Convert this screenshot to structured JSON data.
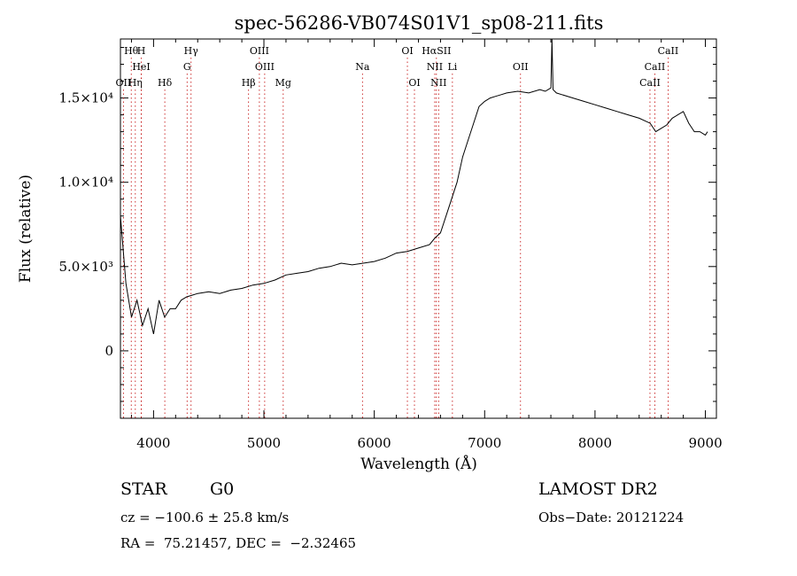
{
  "chart_data": {
    "type": "line",
    "title": "spec-56286-VB074S01V1_sp08-211.fits",
    "xlabel": "Wavelength (Å)",
    "ylabel": "Flux (relative)",
    "xlim": [
      3700,
      9100
    ],
    "ylim": [
      -4000,
      18500
    ],
    "xticks": [
      4000,
      5000,
      6000,
      7000,
      8000,
      9000
    ],
    "yticks": [
      {
        "value": 0,
        "label": "0"
      },
      {
        "value": 5000,
        "label": "5.0×10³"
      },
      {
        "value": 10000,
        "label": "1.0×10⁴"
      },
      {
        "value": 15000,
        "label": "1.5×10⁴"
      }
    ],
    "series": [
      {
        "x": [
          3700,
          3750,
          3800,
          3850,
          3900,
          3950,
          4000,
          4050,
          4100,
          4150,
          4200,
          4250,
          4300,
          4350,
          4400,
          4500,
          4600,
          4700,
          4800,
          4900,
          5000,
          5100,
          5200,
          5300,
          5400,
          5500,
          5600,
          5700,
          5800,
          5900,
          6000,
          6100,
          6200,
          6300,
          6400,
          6500,
          6550,
          6600,
          6650,
          6700,
          6750,
          6800,
          6850,
          6900,
          6950,
          7000,
          7050,
          7100,
          7150,
          7200,
          7300,
          7400,
          7500,
          7550,
          7600,
          7610,
          7620,
          7650,
          7700,
          7800,
          7900,
          8000,
          8100,
          8200,
          8300,
          8400,
          8500,
          8550,
          8600,
          8650,
          8700,
          8750,
          8800,
          8850,
          8900,
          8950,
          9000,
          9020
        ],
        "y": [
          8000,
          4000,
          2000,
          3000,
          1500,
          2500,
          1000,
          3000,
          2000,
          2500,
          2500,
          3000,
          3200,
          3300,
          3400,
          3500,
          3400,
          3600,
          3700,
          3900,
          4000,
          4200,
          4500,
          4600,
          4700,
          4900,
          5000,
          5200,
          5100,
          5200,
          5300,
          5500,
          5800,
          5900,
          6100,
          6300,
          6700,
          7000,
          8000,
          9000,
          10000,
          11500,
          12500,
          13500,
          14500,
          14800,
          15000,
          15100,
          15200,
          15300,
          15400,
          15300,
          15500,
          15400,
          15600,
          18500,
          15500,
          15300,
          15200,
          15000,
          14800,
          14600,
          14400,
          14200,
          14000,
          13800,
          13500,
          13000,
          13200,
          13400,
          13800,
          14000,
          14200,
          13500,
          13000,
          13000,
          12800,
          13000
        ]
      }
    ],
    "lines": [
      {
        "label": "Hθ",
        "x": 3798,
        "row": 1
      },
      {
        "label": "H",
        "x": 3889,
        "row": 1
      },
      {
        "label": "Hγ",
        "x": 4340,
        "row": 1
      },
      {
        "label": "OIII",
        "x": 4959,
        "row": 1
      },
      {
        "label": "OI",
        "x": 6300,
        "row": 1
      },
      {
        "label": "HαSII",
        "x": 6563,
        "row": 1
      },
      {
        "label": "CaII",
        "x": 8662,
        "row": 1
      },
      {
        "label": "HeI",
        "x": 3889,
        "row": 2
      },
      {
        "label": "G",
        "x": 4304,
        "row": 2
      },
      {
        "label": "OIII",
        "x": 5007,
        "row": 2
      },
      {
        "label": "Na",
        "x": 5893,
        "row": 2
      },
      {
        "label": "NII",
        "x": 6548,
        "row": 2
      },
      {
        "label": "Li",
        "x": 6708,
        "row": 2
      },
      {
        "label": "OII",
        "x": 7325,
        "row": 2
      },
      {
        "label": "CaII",
        "x": 8542,
        "row": 2
      },
      {
        "label": "OII",
        "x": 3727,
        "row": 3
      },
      {
        "label": "Hη",
        "x": 3835,
        "row": 3
      },
      {
        "label": "Hδ",
        "x": 4102,
        "row": 3
      },
      {
        "label": "Hβ",
        "x": 4861,
        "row": 3
      },
      {
        "label": "Mg",
        "x": 5175,
        "row": 3
      },
      {
        "label": "OI",
        "x": 6364,
        "row": 3
      },
      {
        "label": "NII",
        "x": 6583,
        "row": 3
      },
      {
        "label": "CaII",
        "x": 8498,
        "row": 3
      }
    ]
  },
  "info": {
    "object": "STAR",
    "subclass": "G0",
    "survey": "LAMOST DR2",
    "cz": "cz = −100.6 ± 25.8 km/s",
    "obsdate": "Obs−Date: 20121224",
    "coords": "RA =  75.21457, DEC =  −2.32465"
  }
}
